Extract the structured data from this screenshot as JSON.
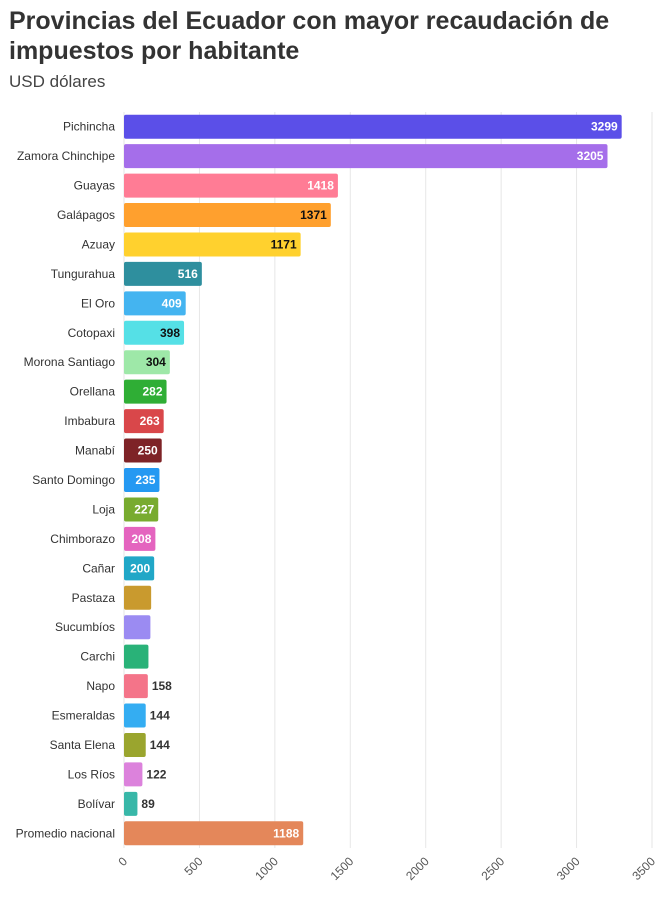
{
  "chart_data": {
    "type": "bar",
    "orientation": "horizontal",
    "title": "Provincias del Ecuador con mayor recaudación de impuestos por habitante",
    "subtitle": "USD dólares",
    "xlim": [
      0,
      3500
    ],
    "xticks": [
      "0",
      "500",
      "1000",
      "1500",
      "2000",
      "2500",
      "3000",
      "3500"
    ],
    "tick_values": [
      0,
      500,
      1000,
      1500,
      2000,
      2500,
      3000,
      3500
    ],
    "grid": true,
    "categories": [
      "Pichincha",
      "Zamora Chinchipe",
      "Guayas",
      "Galápagos",
      "Azuay",
      "Tungurahua",
      "El Oro",
      "Cotopaxi",
      "Morona Santiago",
      "Orellana",
      "Imbabura",
      "Manabí",
      "Santo Domingo",
      "Loja",
      "Chimborazo",
      "Cañar",
      "Pastaza",
      "Sucumbíos",
      "Carchi",
      "Napo",
      "Esmeraldas",
      "Santa Elena",
      "Los Ríos",
      "Bolívar",
      "Promedio nacional"
    ],
    "values": [
      3299,
      3205,
      1418,
      1371,
      1171,
      516,
      409,
      398,
      304,
      282,
      263,
      250,
      235,
      227,
      208,
      200,
      180,
      175,
      162,
      158,
      144,
      144,
      122,
      89,
      1188
    ],
    "colors": [
      "#5b4fe8",
      "#a56eea",
      "#ff7c95",
      "#ffa02e",
      "#ffd12e",
      "#2e8f9e",
      "#44b4f0",
      "#55e0e6",
      "#9ee8a8",
      "#2fae35",
      "#d9474a",
      "#7e2327",
      "#2599f2",
      "#78ab2f",
      "#e464bf",
      "#21a7c7",
      "#c99a2e",
      "#9b8bf2",
      "#29b278",
      "#f47489",
      "#34adf2",
      "#9aa52e",
      "#dc82dc",
      "#38b7a8",
      "#e4875a"
    ],
    "value_label_colors": [
      "#ffffff",
      "#ffffff",
      "#ffffff",
      "#111111",
      "#111111",
      "#ffffff",
      "#ffffff",
      "#111111",
      "#111111",
      "#ffffff",
      "#ffffff",
      "#ffffff",
      "#ffffff",
      "#ffffff",
      "#ffffff",
      "#ffffff",
      "#ffffff",
      "#ffffff",
      "#ffffff",
      "#333333",
      "#333333",
      "#333333",
      "#333333",
      "#333333",
      "#ffffff"
    ]
  }
}
